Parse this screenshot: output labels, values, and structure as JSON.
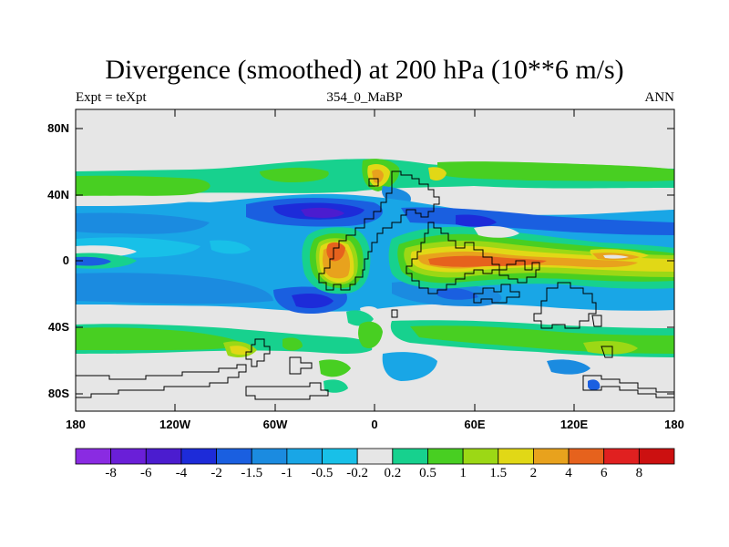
{
  "title": "Divergence (smoothed) at 200 hPa (10**6 m/s)",
  "subtitle_left": "Expt = teXpt",
  "subtitle_center": "354_0_MaBP",
  "subtitle_right": "ANN",
  "lat_labels": [
    "80N",
    "40N",
    "0",
    "40S",
    "80S"
  ],
  "lon_labels": [
    "180",
    "120W",
    "60W",
    "0",
    "60E",
    "120E",
    "180"
  ],
  "colorbar": {
    "labels": [
      "-8",
      "-6",
      "-4",
      "-2",
      "-1.5",
      "-1",
      "-0.5",
      "-0.2",
      "0.2",
      "0.5",
      "1",
      "1.5",
      "2",
      "4",
      "6",
      "8"
    ],
    "colors": [
      "#8a2be2",
      "#6a1fd8",
      "#4b1ccf",
      "#1d2bd9",
      "#1a5fe0",
      "#1b8be0",
      "#19a6e6",
      "#18c0e8",
      "#e6e6e6",
      "#17d18e",
      "#48cf22",
      "#9cd815",
      "#e1d816",
      "#e8a21d",
      "#e6621d",
      "#e02020",
      "#cc1010"
    ]
  },
  "background_color": "#e6e6e6"
}
